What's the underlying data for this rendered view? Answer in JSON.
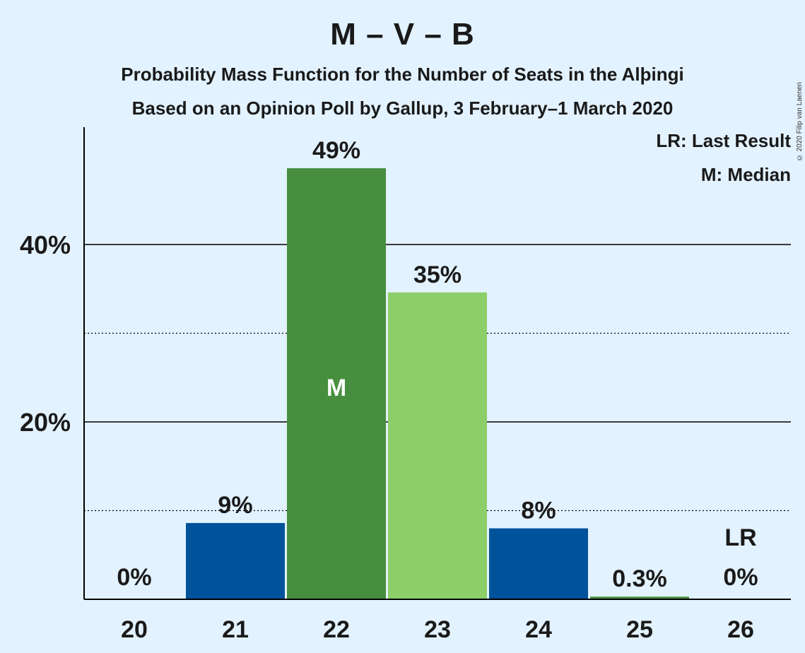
{
  "title": "M – V – B",
  "subtitle_1": "Probability Mass Function for the Number of Seats in the Alþingi",
  "subtitle_2": "Based on an Opinion Poll by Gallup, 3 February–1 March 2020",
  "legend": {
    "last_result": "LR: Last Result",
    "median": "M: Median"
  },
  "copyright": "© 2020 Filip van Laenen",
  "colors": {
    "background": "#e3f2ff",
    "dark_blue": "#00529b",
    "dark_green": "#478e3f",
    "light_green": "#8ccf68"
  },
  "chart_data": {
    "type": "bar",
    "categories": [
      "20",
      "21",
      "22",
      "23",
      "24",
      "25",
      "26"
    ],
    "values": [
      0,
      8.6,
      48.6,
      34.6,
      8.0,
      0.3,
      0
    ],
    "value_labels": [
      "0%",
      "9%",
      "49%",
      "35%",
      "8%",
      "0.3%",
      "0%"
    ],
    "bar_colors": [
      "#00529b",
      "#00529b",
      "#478e3f",
      "#8ccf68",
      "#00529b",
      "#478e3f",
      "#00529b"
    ],
    "ylim": [
      0,
      52
    ],
    "yticks": [
      {
        "value": 20,
        "label": "20%",
        "style": "solid"
      },
      {
        "value": 40,
        "label": "40%",
        "style": "solid"
      }
    ],
    "minor_gridlines": [
      10,
      30
    ],
    "median_category": "22",
    "median_marker": "M",
    "last_result_category": "26",
    "last_result_marker": "LR",
    "legend_position": "top-right"
  }
}
